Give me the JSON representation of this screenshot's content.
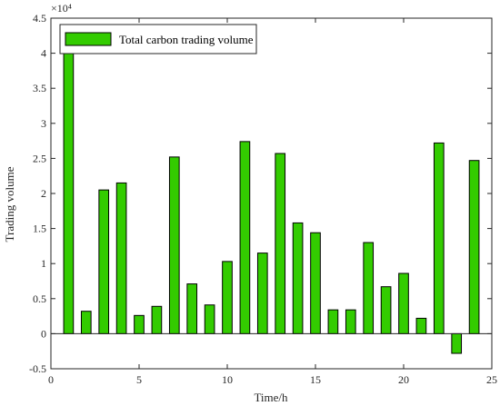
{
  "chart_data": {
    "type": "bar",
    "xlabel": "Time/h",
    "ylabel": "Trading volume",
    "exponent_label": "×10⁴",
    "legend_position": "top-left",
    "xlim": [
      0,
      25
    ],
    "ylim": [
      -0.5,
      4.5
    ],
    "x_ticks": [
      "0",
      "5",
      "10",
      "15",
      "20",
      "25"
    ],
    "y_ticks": [
      "-0.5",
      "0",
      "0.5",
      "1",
      "1.5",
      "2",
      "2.5",
      "3",
      "3.5",
      "4",
      "4.5"
    ],
    "grid": false,
    "series": [
      {
        "name": "Total carbon trading volume",
        "color": "#33cc00",
        "x": [
          1,
          2,
          3,
          4,
          5,
          6,
          7,
          8,
          9,
          10,
          11,
          12,
          13,
          14,
          15,
          16,
          17,
          18,
          19,
          20,
          21,
          22,
          23,
          24
        ],
        "values": [
          4.02,
          0.32,
          2.05,
          2.15,
          0.26,
          0.39,
          2.52,
          0.71,
          0.41,
          1.03,
          2.74,
          1.15,
          2.57,
          1.58,
          1.44,
          0.34,
          0.34,
          1.3,
          0.67,
          0.86,
          0.22,
          2.72,
          -0.28,
          2.47
        ]
      }
    ]
  }
}
